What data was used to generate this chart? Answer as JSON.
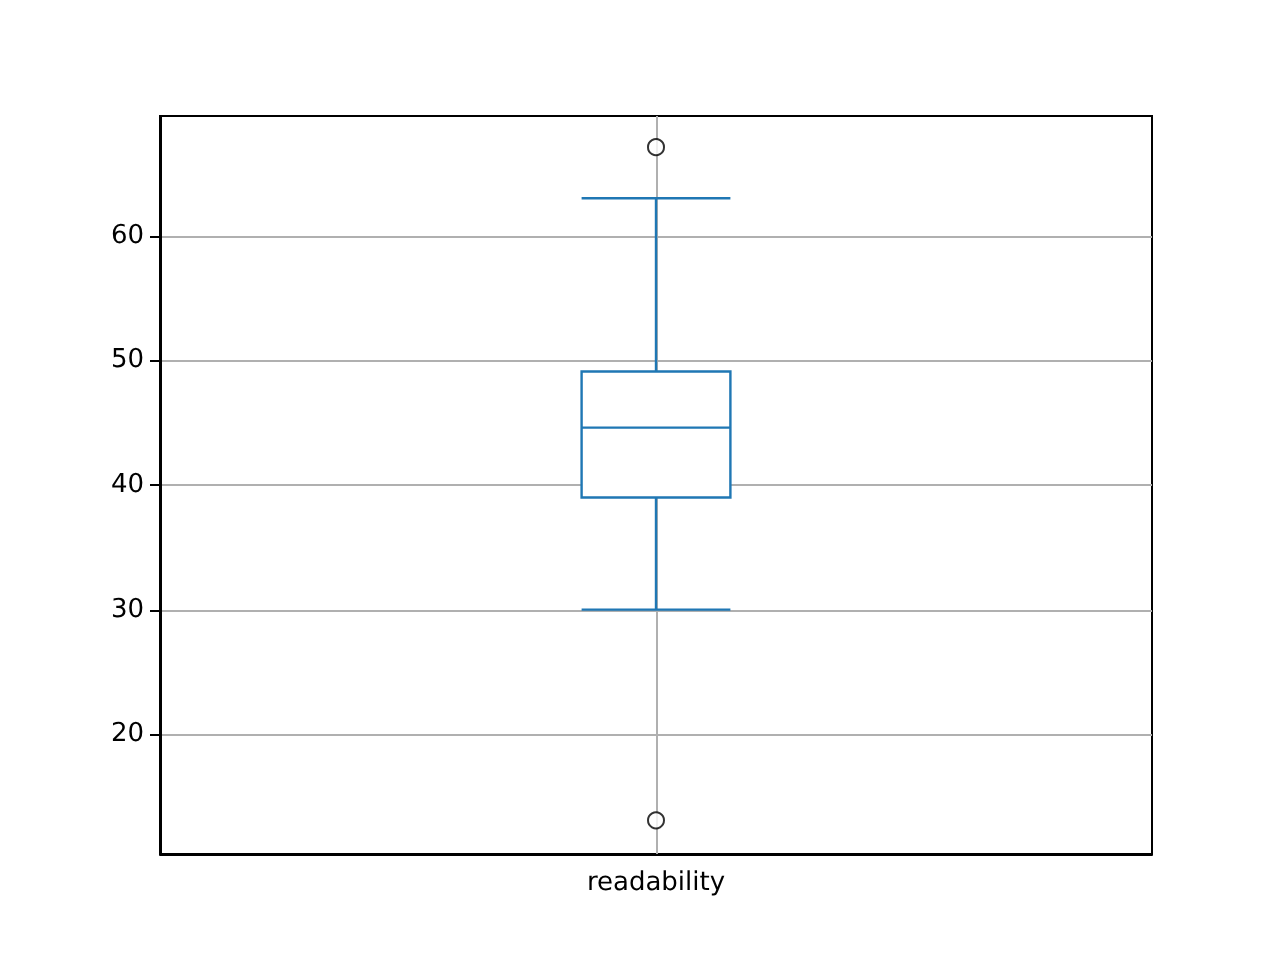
{
  "chart_data": {
    "type": "box",
    "categories": [
      "readability"
    ],
    "series": [
      {
        "color": "#1f77b4",
        "boxes": [
          {
            "low": 30,
            "q1": 39,
            "median": 44.6,
            "q3": 49.1,
            "high": 63,
            "outliers": [
              67.1,
              13.1
            ]
          }
        ]
      }
    ],
    "ylim": [
      10.4,
      69.6
    ],
    "yticks": [
      20,
      30,
      40,
      50,
      60
    ],
    "grid": true
  }
}
